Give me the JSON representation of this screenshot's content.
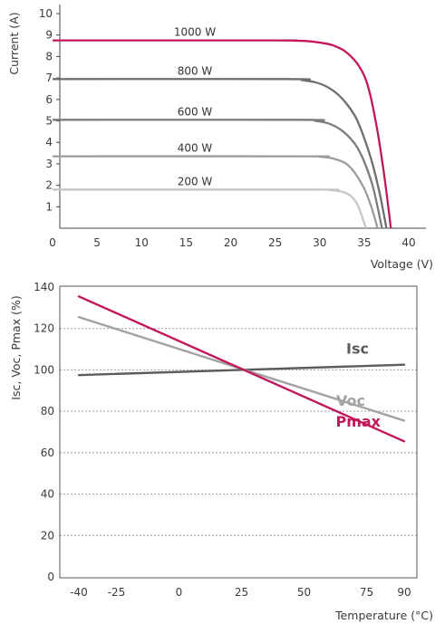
{
  "chart_data": [
    {
      "type": "line",
      "title": "",
      "xlabel": "Voltage (V)",
      "ylabel": "Current (A)",
      "xlim": [
        0,
        42
      ],
      "ylim": [
        0,
        10.5
      ],
      "xticks": [
        "0",
        "5",
        "10",
        "15",
        "20",
        "25",
        "30",
        "35",
        "40"
      ],
      "yticks": [
        "1",
        "2",
        "3",
        "4",
        "5",
        "6",
        "7",
        "8",
        "9",
        "10"
      ],
      "grid": false,
      "series": [
        {
          "name": "1000 W",
          "color": "#c2185b",
          "isc": 8.75,
          "knee_v": 30.5,
          "voc": 38.0,
          "x": [
            0,
            25,
            27,
            28.5,
            30,
            31.5,
            33,
            34.5,
            35.5,
            36.5,
            37.3,
            38.0
          ],
          "y": [
            8.75,
            8.75,
            8.74,
            8.72,
            8.65,
            8.52,
            8.2,
            7.5,
            6.5,
            4.5,
            2.3,
            0
          ]
        },
        {
          "name": "800 W",
          "color": "#6e6e6e",
          "isc": 6.95,
          "voc": 37.5,
          "x": [
            0,
            26.5,
            28,
            29.5,
            31,
            32.5,
            34,
            35,
            36,
            36.8,
            37.5
          ],
          "y": [
            6.95,
            6.95,
            6.9,
            6.8,
            6.55,
            6.05,
            5.2,
            4.2,
            2.9,
            1.5,
            0
          ]
        },
        {
          "name": "600 W",
          "color": "#7c7c7c",
          "isc": 5.05,
          "voc": 37.0,
          "x": [
            0,
            28,
            29.5,
            31,
            32.5,
            34,
            35,
            36,
            37.0
          ],
          "y": [
            5.05,
            5.05,
            5.0,
            4.88,
            4.55,
            3.9,
            3.1,
            1.9,
            0
          ]
        },
        {
          "name": "400 W",
          "color": "#9c9c9c",
          "isc": 3.35,
          "voc": 36.5,
          "x": [
            0,
            28.5,
            30,
            31.5,
            33,
            34,
            35,
            35.8,
            36.5
          ],
          "y": [
            3.35,
            3.35,
            3.33,
            3.25,
            3.0,
            2.55,
            1.85,
            1.0,
            0
          ]
        },
        {
          "name": "200 W",
          "color": "#c6c6c6",
          "isc": 1.8,
          "voc": 35.2,
          "x": [
            0,
            29.5,
            31,
            32.5,
            33.5,
            34.3,
            35.2
          ],
          "y": [
            1.8,
            1.8,
            1.78,
            1.7,
            1.5,
            1.05,
            0
          ]
        }
      ]
    },
    {
      "type": "line",
      "title": "",
      "xlabel": "Temperature (°C)",
      "ylabel": "Isc, Voc, Pmax (%)",
      "xlim": [
        -45,
        95
      ],
      "ylim": [
        0,
        140
      ],
      "xticks": [
        -40,
        -25,
        0,
        25,
        50,
        75,
        90
      ],
      "yticks": [
        0,
        20,
        40,
        60,
        80,
        100,
        120,
        140
      ],
      "grid": true,
      "series": [
        {
          "name": "Isc",
          "color": "#5c5c5c",
          "x": [
            -40,
            90
          ],
          "y": [
            97.5,
            102.5
          ]
        },
        {
          "name": "Voc",
          "color": "#a3a3a3",
          "x": [
            -40,
            90
          ],
          "y": [
            125.5,
            75.5
          ]
        },
        {
          "name": "Pmax",
          "color": "#c2185b",
          "x": [
            -40,
            90
          ],
          "y": [
            135.5,
            65.5
          ]
        }
      ]
    }
  ]
}
